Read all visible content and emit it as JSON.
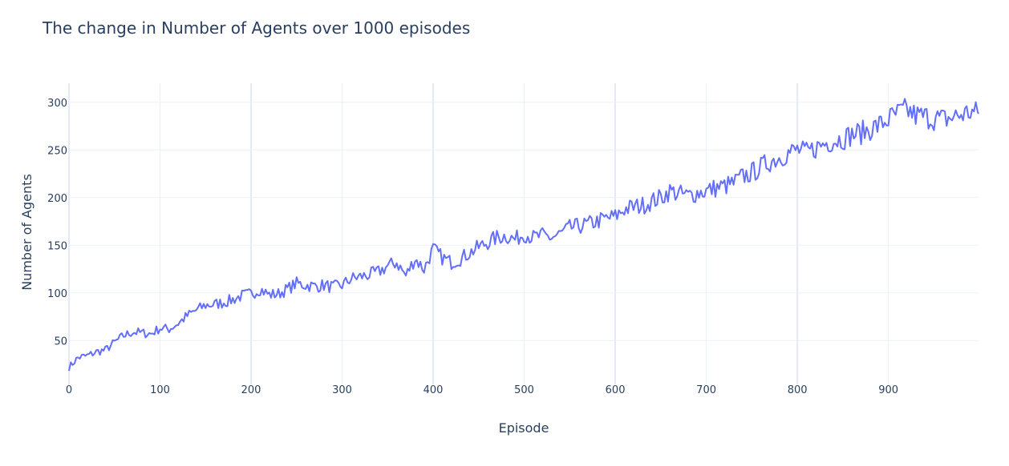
{
  "chart_data": {
    "type": "line",
    "title": "The change in Number of Agents over 1000 episodes",
    "xlabel": "Episode",
    "ylabel": "Number of Agents",
    "xlim": [
      0,
      999
    ],
    "ylim": [
      4,
      320
    ],
    "x_ticks": [
      0,
      100,
      200,
      300,
      400,
      500,
      600,
      700,
      800,
      900
    ],
    "y_ticks": [
      50,
      100,
      150,
      200,
      250,
      300
    ],
    "grid": true,
    "legend": "none",
    "series_color": "#636efa",
    "series": [
      {
        "x": [
          0,
          10,
          20,
          30,
          40,
          50,
          60,
          70,
          80,
          90,
          100,
          110,
          120,
          130,
          140,
          150,
          160,
          170,
          180,
          190,
          200,
          210,
          220,
          230,
          240,
          250,
          260,
          270,
          280,
          290,
          300,
          310,
          320,
          330,
          340,
          350,
          360,
          370,
          380,
          390,
          400,
          410,
          420,
          430,
          440,
          450,
          460,
          470,
          480,
          490,
          500,
          510,
          520,
          530,
          540,
          550,
          560,
          570,
          580,
          590,
          600,
          610,
          620,
          630,
          640,
          650,
          660,
          670,
          680,
          690,
          700,
          710,
          720,
          730,
          740,
          750,
          760,
          770,
          780,
          790,
          800,
          810,
          820,
          830,
          840,
          850,
          860,
          870,
          880,
          890,
          900,
          910,
          920,
          930,
          940,
          950,
          960,
          970,
          980,
          990,
          999
        ],
        "y": [
          22,
          32,
          34,
          38,
          40,
          48,
          55,
          59,
          58,
          57,
          63,
          62,
          68,
          76,
          82,
          87,
          88,
          90,
          93,
          97,
          99,
          104,
          98,
          99,
          104,
          110,
          108,
          107,
          108,
          106,
          108,
          115,
          117,
          119,
          122,
          128,
          132,
          118,
          136,
          125,
          146,
          137,
          132,
          136,
          142,
          148,
          153,
          158,
          160,
          156,
          162,
          158,
          160,
          158,
          162,
          168,
          170,
          172,
          175,
          178,
          180,
          188,
          190,
          192,
          196,
          200,
          207,
          204,
          202,
          205,
          207,
          210,
          212,
          215,
          222,
          226,
          232,
          238,
          242,
          247,
          250,
          247,
          252,
          257,
          260,
          262,
          266,
          268,
          272,
          276,
          282,
          288,
          292,
          286,
          285,
          283,
          282,
          284,
          287,
          290,
          288
        ]
      }
    ]
  }
}
